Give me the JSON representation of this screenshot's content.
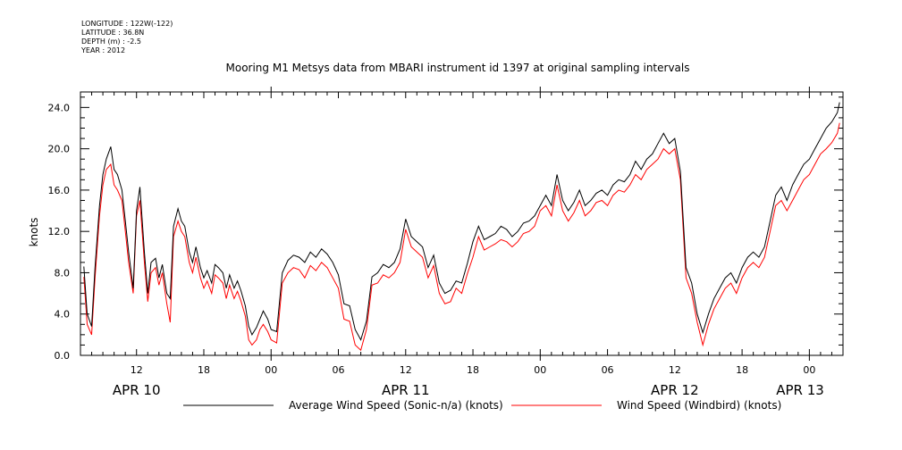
{
  "header": {
    "lines": [
      "LONGITUDE : 122W(-122)",
      "LATITUDE : 36.8N",
      "DEPTH (m) : -2.5",
      "YEAR : 2012"
    ]
  },
  "chart_data": {
    "type": "line",
    "title": "Mooring M1 Metsys data from MBARI instrument id 1397 at original sampling intervals",
    "ylabel": "knots",
    "xlabel": "",
    "ylim": [
      0,
      25.5
    ],
    "xlim_hours": [
      7,
      75
    ],
    "yticks": [
      "0.0",
      "4.0",
      "8.0",
      "12.0",
      "16.0",
      "20.0",
      "24.0"
    ],
    "xticks": [
      {
        "hour": 12,
        "label": "12"
      },
      {
        "hour": 18,
        "label": "18"
      },
      {
        "hour": 24,
        "label": "00"
      },
      {
        "hour": 30,
        "label": "06"
      },
      {
        "hour": 36,
        "label": "12"
      },
      {
        "hour": 42,
        "label": "18"
      },
      {
        "hour": 48,
        "label": "00"
      },
      {
        "hour": 54,
        "label": "06"
      },
      {
        "hour": 60,
        "label": "12"
      },
      {
        "hour": 66,
        "label": "18"
      },
      {
        "hour": 72,
        "label": "00"
      }
    ],
    "day_labels": [
      {
        "hour": 12,
        "label": "APR 10"
      },
      {
        "hour": 36,
        "label": "APR 11"
      },
      {
        "hour": 60,
        "label": "APR 12"
      },
      {
        "hour": 84,
        "label": "APR 13"
      }
    ],
    "series": [
      {
        "name": "Average Wind Speed (Sonic-n/a) (knots)",
        "color": "#000000",
        "x": [
          7.3,
          7.6,
          8.0,
          8.3,
          8.7,
          9.0,
          9.3,
          9.7,
          10.0,
          10.3,
          10.7,
          11.0,
          11.3,
          11.7,
          12.0,
          12.3,
          12.7,
          13.0,
          13.3,
          13.7,
          14.0,
          14.3,
          14.7,
          15.0,
          15.3,
          15.7,
          16.0,
          16.3,
          16.7,
          17.0,
          17.3,
          17.7,
          18.0,
          18.3,
          18.7,
          19.0,
          19.3,
          19.7,
          20.0,
          20.3,
          20.7,
          21.0,
          21.3,
          21.7,
          22.0,
          22.3,
          22.7,
          23.0,
          23.3,
          23.7,
          24.0,
          24.5,
          25.0,
          25.5,
          26.0,
          26.5,
          27.0,
          27.5,
          28.0,
          28.5,
          29.0,
          29.5,
          30.0,
          30.5,
          31.0,
          31.5,
          32.0,
          32.5,
          33.0,
          33.5,
          34.0,
          34.5,
          35.0,
          35.5,
          36.0,
          36.5,
          37.0,
          37.5,
          38.0,
          38.5,
          39.0,
          39.5,
          40.0,
          40.5,
          41.0,
          41.5,
          42.0,
          42.5,
          43.0,
          43.5,
          44.0,
          44.5,
          45.0,
          45.5,
          46.0,
          46.5,
          47.0,
          47.5,
          48.0,
          48.5,
          49.0,
          49.5,
          50.0,
          50.5,
          51.0,
          51.5,
          52.0,
          52.5,
          53.0,
          53.5,
          54.0,
          54.5,
          55.0,
          55.5,
          56.0,
          56.5,
          57.0,
          57.5,
          58.0,
          58.5,
          59.0,
          59.5,
          60.0,
          60.5,
          61.0,
          61.5,
          62.0,
          62.5,
          63.0,
          63.5,
          64.0,
          64.5,
          65.0,
          65.5,
          66.0,
          66.5,
          67.0,
          67.5,
          68.0,
          68.5,
          69.0,
          69.5,
          70.0,
          70.5,
          71.0,
          71.5,
          72.0,
          72.5,
          73.0,
          73.5,
          74.0,
          74.5,
          74.7
        ],
        "values": [
          8.6,
          4.0,
          2.8,
          8.5,
          14.5,
          17.5,
          19.0,
          20.2,
          18.0,
          17.5,
          16.0,
          13.0,
          10.0,
          6.5,
          14.0,
          16.3,
          10.0,
          6.0,
          9.0,
          9.4,
          7.5,
          8.8,
          6.0,
          5.5,
          12.5,
          14.2,
          13.0,
          12.5,
          10.0,
          9.0,
          10.5,
          8.5,
          7.5,
          8.2,
          7.0,
          8.8,
          8.5,
          8.0,
          6.5,
          7.8,
          6.5,
          7.2,
          6.3,
          4.8,
          2.8,
          2.0,
          2.7,
          3.5,
          4.3,
          3.5,
          2.5,
          2.3,
          8.0,
          9.2,
          9.7,
          9.5,
          9.0,
          10.0,
          9.5,
          10.3,
          9.8,
          9.0,
          7.8,
          5.0,
          4.8,
          2.5,
          1.5,
          3.3,
          7.6,
          8.0,
          8.8,
          8.5,
          9.0,
          10.3,
          13.2,
          11.5,
          11.0,
          10.5,
          8.5,
          9.7,
          7.0,
          6.0,
          6.3,
          7.2,
          7.0,
          8.9,
          11.0,
          12.5,
          11.2,
          11.5,
          11.8,
          12.5,
          12.2,
          11.5,
          12.0,
          12.8,
          13.0,
          13.5,
          14.5,
          15.5,
          14.5,
          17.5,
          15.0,
          14.0,
          14.8,
          16.0,
          14.5,
          15.0,
          15.7,
          16.0,
          15.5,
          16.5,
          17.0,
          16.8,
          17.5,
          18.8,
          18.0,
          19.0,
          19.5,
          20.5,
          21.5,
          20.5,
          21.0,
          17.8,
          8.5,
          7.0,
          4.0,
          2.2,
          4.0,
          5.5,
          6.5,
          7.5,
          8.0,
          7.0,
          8.5,
          9.5,
          10.0,
          9.5,
          10.5,
          13.0,
          15.5,
          16.3,
          15.0,
          16.5,
          17.5,
          18.5,
          19.0,
          20.0,
          21.0,
          22.0,
          22.6,
          23.5,
          24.5
        ]
      },
      {
        "name": "Wind Speed (Windbird) (knots)",
        "color": "#ff0000",
        "x": [
          7.3,
          7.6,
          8.0,
          8.3,
          8.7,
          9.0,
          9.3,
          9.7,
          10.0,
          10.3,
          10.7,
          11.0,
          11.3,
          11.7,
          12.0,
          12.3,
          12.7,
          13.0,
          13.3,
          13.7,
          14.0,
          14.3,
          14.7,
          15.0,
          15.3,
          15.7,
          16.0,
          16.3,
          16.7,
          17.0,
          17.3,
          17.7,
          18.0,
          18.3,
          18.7,
          19.0,
          19.3,
          19.7,
          20.0,
          20.3,
          20.7,
          21.0,
          21.3,
          21.7,
          22.0,
          22.3,
          22.7,
          23.0,
          23.3,
          23.7,
          24.0,
          24.5,
          25.0,
          25.5,
          26.0,
          26.5,
          27.0,
          27.5,
          28.0,
          28.5,
          29.0,
          29.5,
          30.0,
          30.5,
          31.0,
          31.5,
          32.0,
          32.5,
          33.0,
          33.5,
          34.0,
          34.5,
          35.0,
          35.5,
          36.0,
          36.5,
          37.0,
          37.5,
          38.0,
          38.5,
          39.0,
          39.5,
          40.0,
          40.5,
          41.0,
          41.5,
          42.0,
          42.5,
          43.0,
          43.5,
          44.0,
          44.5,
          45.0,
          45.5,
          46.0,
          46.5,
          47.0,
          47.5,
          48.0,
          48.5,
          49.0,
          49.5,
          50.0,
          50.5,
          51.0,
          51.5,
          52.0,
          52.5,
          53.0,
          53.5,
          54.0,
          54.5,
          55.0,
          55.5,
          56.0,
          56.5,
          57.0,
          57.5,
          58.0,
          58.5,
          59.0,
          59.5,
          60.0,
          60.5,
          61.0,
          61.5,
          62.0,
          62.5,
          63.0,
          63.5,
          64.0,
          64.5,
          65.0,
          65.5,
          66.0,
          66.5,
          67.0,
          67.5,
          68.0,
          68.5,
          69.0,
          69.5,
          70.0,
          70.5,
          71.0,
          71.5,
          72.0,
          72.5,
          73.0,
          73.5,
          74.0,
          74.5,
          74.7
        ],
        "values": [
          7.6,
          3.0,
          2.0,
          7.5,
          13.5,
          16.5,
          18.0,
          18.5,
          16.5,
          16.0,
          15.0,
          12.0,
          9.0,
          6.0,
          13.5,
          15.0,
          9.0,
          5.2,
          8.0,
          8.5,
          6.8,
          8.0,
          5.0,
          3.2,
          11.5,
          13.0,
          12.0,
          11.5,
          9.0,
          8.0,
          9.5,
          7.5,
          6.5,
          7.2,
          6.0,
          7.8,
          7.5,
          7.0,
          5.5,
          6.8,
          5.5,
          6.2,
          5.3,
          3.8,
          1.5,
          1.0,
          1.5,
          2.5,
          3.0,
          2.3,
          1.5,
          1.2,
          7.0,
          8.0,
          8.5,
          8.3,
          7.5,
          8.7,
          8.2,
          9.0,
          8.5,
          7.5,
          6.5,
          3.5,
          3.3,
          1.0,
          0.5,
          2.5,
          6.8,
          7.0,
          7.8,
          7.5,
          8.0,
          9.0,
          12.2,
          10.5,
          10.0,
          9.5,
          7.5,
          8.7,
          6.0,
          5.0,
          5.2,
          6.5,
          6.0,
          7.9,
          9.5,
          11.5,
          10.2,
          10.5,
          10.8,
          11.2,
          11.0,
          10.5,
          11.0,
          11.8,
          12.0,
          12.5,
          14.0,
          14.5,
          13.5,
          16.5,
          14.0,
          13.0,
          13.8,
          15.0,
          13.5,
          14.0,
          14.8,
          15.0,
          14.5,
          15.5,
          16.0,
          15.8,
          16.5,
          17.5,
          17.0,
          18.0,
          18.5,
          19.0,
          20.0,
          19.5,
          20.0,
          17.0,
          7.5,
          6.0,
          3.2,
          1.0,
          3.0,
          4.5,
          5.5,
          6.5,
          7.0,
          6.0,
          7.5,
          8.5,
          9.0,
          8.5,
          9.5,
          12.0,
          14.5,
          15.0,
          14.0,
          15.0,
          16.0,
          17.0,
          17.5,
          18.5,
          19.5,
          20.0,
          20.6,
          21.5,
          22.5
        ]
      }
    ]
  }
}
